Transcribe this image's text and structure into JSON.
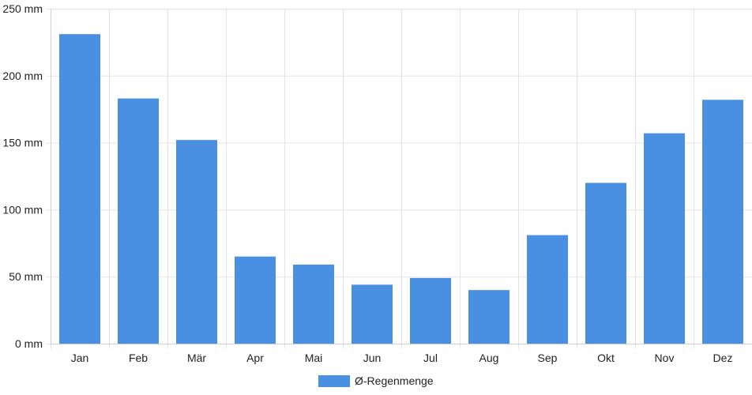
{
  "chart_data": {
    "type": "bar",
    "categories": [
      "Jan",
      "Feb",
      "Mär",
      "Apr",
      "Mai",
      "Jun",
      "Jul",
      "Aug",
      "Sep",
      "Okt",
      "Nov",
      "Dez"
    ],
    "series": [
      {
        "name": "Ø-Regenmenge",
        "values": [
          231,
          183,
          152,
          65,
          59,
          44,
          49,
          40,
          81,
          120,
          157,
          182
        ],
        "color": "#4a90e2"
      }
    ],
    "yunit": " mm",
    "ylim": [
      0,
      250
    ],
    "yticks": [
      0,
      50,
      100,
      150,
      200,
      250
    ],
    "grid": true,
    "legend_position": "bottom"
  }
}
